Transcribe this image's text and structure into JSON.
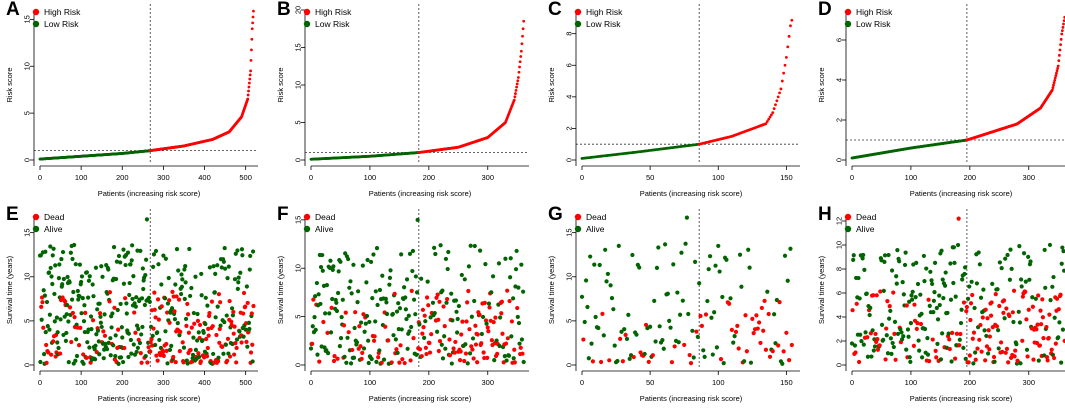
{
  "colors": {
    "high": "#ff0000",
    "low": "#006400",
    "dead": "#ff0000",
    "alive": "#006400",
    "axis": "#000000"
  },
  "chart_data": [
    {
      "panel": "A",
      "type": "scatter",
      "kind": "risk",
      "n": 520,
      "cutoff": 268,
      "xlabel": "Patients (increasing risk score)",
      "ylabel": "Risk score",
      "xlim": [
        0,
        530
      ],
      "ylim": [
        0,
        16
      ],
      "xticks": [
        0,
        100,
        200,
        300,
        400,
        500
      ],
      "yticks": [
        0,
        5,
        10,
        15
      ],
      "threshold": 1.0,
      "legend": [
        "High Risk",
        "Low Risk"
      ],
      "curve": [
        [
          0,
          0.1
        ],
        [
          100,
          0.4
        ],
        [
          200,
          0.7
        ],
        [
          268,
          1.0
        ],
        [
          350,
          1.5
        ],
        [
          420,
          2.2
        ],
        [
          460,
          3.0
        ],
        [
          490,
          4.6
        ],
        [
          505,
          6.5
        ],
        [
          512,
          9.5
        ],
        [
          516,
          14.0
        ],
        [
          520,
          16.5
        ]
      ]
    },
    {
      "panel": "B",
      "type": "scatter",
      "kind": "risk",
      "n": 362,
      "cutoff": 183,
      "xlabel": "Patients (increasing risk score)",
      "ylabel": "Risk score",
      "xlim": [
        0,
        370
      ],
      "ylim": [
        0,
        20
      ],
      "xticks": [
        0,
        100,
        200,
        300
      ],
      "yticks": [
        0,
        5,
        10,
        15,
        20
      ],
      "threshold": 1.0,
      "legend": [
        "High Risk",
        "Low Risk"
      ],
      "curve": [
        [
          0,
          0.1
        ],
        [
          100,
          0.5
        ],
        [
          183,
          1.0
        ],
        [
          250,
          1.7
        ],
        [
          300,
          3.0
        ],
        [
          330,
          5.0
        ],
        [
          345,
          8.0
        ],
        [
          352,
          11.0
        ],
        [
          357,
          14.5
        ],
        [
          362,
          19.5
        ]
      ]
    },
    {
      "panel": "C",
      "type": "scatter",
      "kind": "risk",
      "n": 155,
      "cutoff": 86,
      "xlabel": "Patients (increasing risk score)",
      "ylabel": "Risk score",
      "xlim": [
        0,
        160
      ],
      "ylim": [
        0,
        9.5
      ],
      "xticks": [
        0,
        50,
        100,
        150
      ],
      "yticks": [
        0,
        2,
        4,
        6,
        8
      ],
      "threshold": 1.0,
      "legend": [
        "High Risk",
        "Low Risk"
      ],
      "curve": [
        [
          0,
          0.1
        ],
        [
          40,
          0.5
        ],
        [
          86,
          1.0
        ],
        [
          110,
          1.5
        ],
        [
          135,
          2.3
        ],
        [
          140,
          3.0
        ],
        [
          146,
          4.5
        ],
        [
          150,
          6.5
        ],
        [
          153,
          8.5
        ],
        [
          155,
          9.2
        ]
      ]
    },
    {
      "panel": "D",
      "type": "scatter",
      "kind": "risk",
      "n": 362,
      "cutoff": 195,
      "xlabel": "Patients (increasing risk score)",
      "ylabel": "Risk score",
      "xlim": [
        0,
        370
      ],
      "ylim": [
        0,
        7.5
      ],
      "xticks": [
        0,
        100,
        200,
        300
      ],
      "yticks": [
        0,
        2,
        4,
        6
      ],
      "threshold": 1.0,
      "legend": [
        "High Risk",
        "Low Risk"
      ],
      "curve": [
        [
          0,
          0.1
        ],
        [
          100,
          0.6
        ],
        [
          195,
          1.0
        ],
        [
          280,
          1.8
        ],
        [
          320,
          2.6
        ],
        [
          340,
          3.5
        ],
        [
          350,
          4.7
        ],
        [
          356,
          6.3
        ],
        [
          362,
          7.3
        ]
      ]
    },
    {
      "panel": "E",
      "type": "scatter",
      "kind": "survival",
      "n": 520,
      "cutoff": 268,
      "xlabel": "Patients (increasing risk score)",
      "ylabel": "Survival time (years)",
      "xlim": [
        0,
        530
      ],
      "ylim": [
        0,
        17
      ],
      "xticks": [
        0,
        100,
        200,
        300,
        400,
        500
      ],
      "yticks": [
        0,
        5,
        10,
        15
      ],
      "legend": [
        "Dead",
        "Alive"
      ],
      "maxY": 16.5,
      "seed": 11
    },
    {
      "panel": "F",
      "type": "scatter",
      "kind": "survival",
      "n": 362,
      "cutoff": 183,
      "xlabel": "Patients (increasing risk score)",
      "ylabel": "Survival time (years)",
      "xlim": [
        0,
        370
      ],
      "ylim": [
        0,
        15.5
      ],
      "xticks": [
        0,
        100,
        200,
        300
      ],
      "yticks": [
        0,
        5,
        10,
        15
      ],
      "legend": [
        "Dead",
        "Alive"
      ],
      "maxY": 15.0,
      "seed": 23
    },
    {
      "panel": "G",
      "type": "scatter",
      "kind": "survival",
      "n": 155,
      "cutoff": 86,
      "xlabel": "Patients (increasing risk score)",
      "ylabel": "Survival time (years)",
      "xlim": [
        0,
        160
      ],
      "ylim": [
        0,
        17
      ],
      "xticks": [
        0,
        50,
        100,
        150
      ],
      "yticks": [
        0,
        5,
        10,
        15
      ],
      "legend": [
        "Dead",
        "Alive"
      ],
      "maxY": 16.7,
      "seed": 37
    },
    {
      "panel": "H",
      "type": "scatter",
      "kind": "survival",
      "n": 362,
      "cutoff": 195,
      "xlabel": "Patients (increasing risk score)",
      "ylabel": "Survival time (years)",
      "xlim": [
        0,
        370
      ],
      "ylim": [
        0,
        12.5
      ],
      "xticks": [
        0,
        100,
        200,
        300
      ],
      "yticks": [
        0,
        2,
        4,
        6,
        8,
        10,
        12
      ],
      "legend": [
        "Dead",
        "Alive"
      ],
      "maxY": 12.2,
      "seed": 53
    }
  ]
}
